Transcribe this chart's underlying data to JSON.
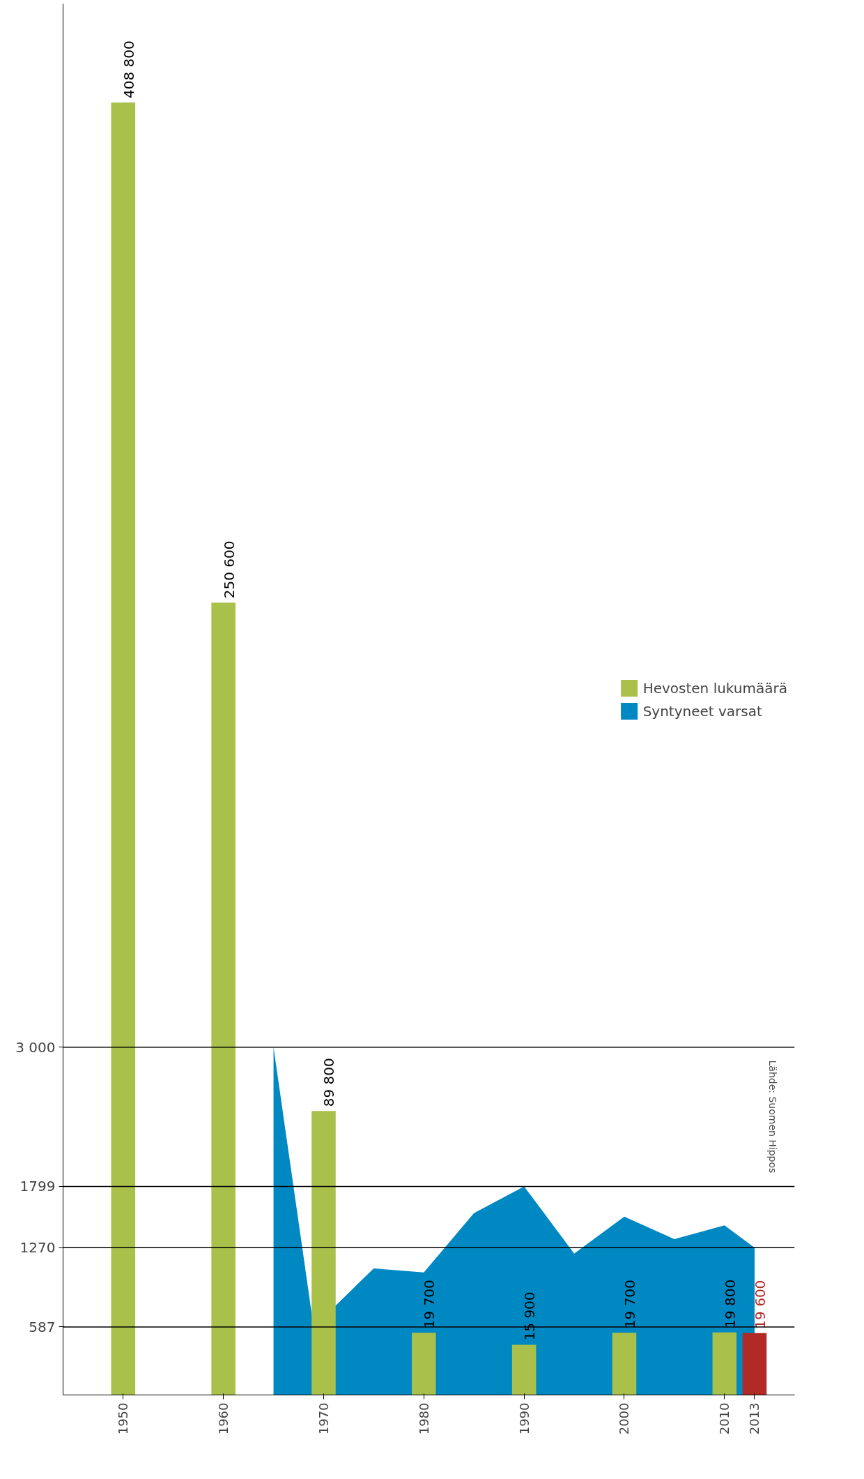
{
  "chart_data": {
    "type": "bar",
    "x": [
      1950,
      1960,
      1970,
      1980,
      1990,
      2000,
      2010,
      2013
    ],
    "xlim": [
      1944,
      2017
    ],
    "xticks": [
      {
        "value": 1950,
        "label": "1950"
      },
      {
        "value": 1960,
        "label": "1960"
      },
      {
        "value": 1970,
        "label": "1970"
      },
      {
        "value": 1980,
        "label": "1980"
      },
      {
        "value": 1990,
        "label": "1990"
      },
      {
        "value": 2000,
        "label": "2000"
      },
      {
        "value": 2010,
        "label": "2010"
      },
      {
        "value": 2013,
        "label": "2013"
      }
    ],
    "ylim": [
      0,
      440000
    ],
    "y2lim": [
      0,
      12000
    ],
    "y2ticks": [
      587,
      1270,
      1799,
      {
        "value": 3000,
        "label": "3 000"
      }
    ],
    "series": [
      {
        "name": "Hevosten lukumäärä",
        "color": "#a9c04a",
        "colors": [
          "#a9c04a",
          "#a9c04a",
          "#a9c04a",
          "#a9c04a",
          "#a9c04a",
          "#a9c04a",
          "#a9c04a",
          "#b22a26"
        ],
        "values": [
          408800,
          250600,
          89800,
          19700,
          15900,
          19700,
          19800,
          19600
        ],
        "value_labels": [
          "408 800",
          "250 600",
          "89 800",
          "19 700",
          "15 900",
          "19 700",
          "19 800",
          "19 600"
        ]
      },
      {
        "name": "Syntyneet varsat",
        "type": "area",
        "axis": "y2",
        "color": "#0088c2",
        "x": [
          1965,
          1969,
          1975,
          1980,
          1985,
          1990,
          1995,
          2000,
          2005,
          2010,
          2013
        ],
        "values": [
          3000,
          587,
          1092,
          1057,
          1569,
          1799,
          1220,
          1538,
          1345,
          1463,
          1270
        ]
      }
    ],
    "ref_lines": [
      {
        "axis": "y2",
        "value": 3000,
        "color": "#000000"
      },
      {
        "axis": "y2",
        "value": 1799,
        "color": "#000000"
      },
      {
        "axis": "y2",
        "value": 1270,
        "color": "#000000"
      },
      {
        "axis": "y2",
        "value": 587,
        "color": "#000000"
      }
    ],
    "legend": "center right",
    "grid": false,
    "annotations": [
      "Lähde: Suomen Hippos"
    ]
  }
}
